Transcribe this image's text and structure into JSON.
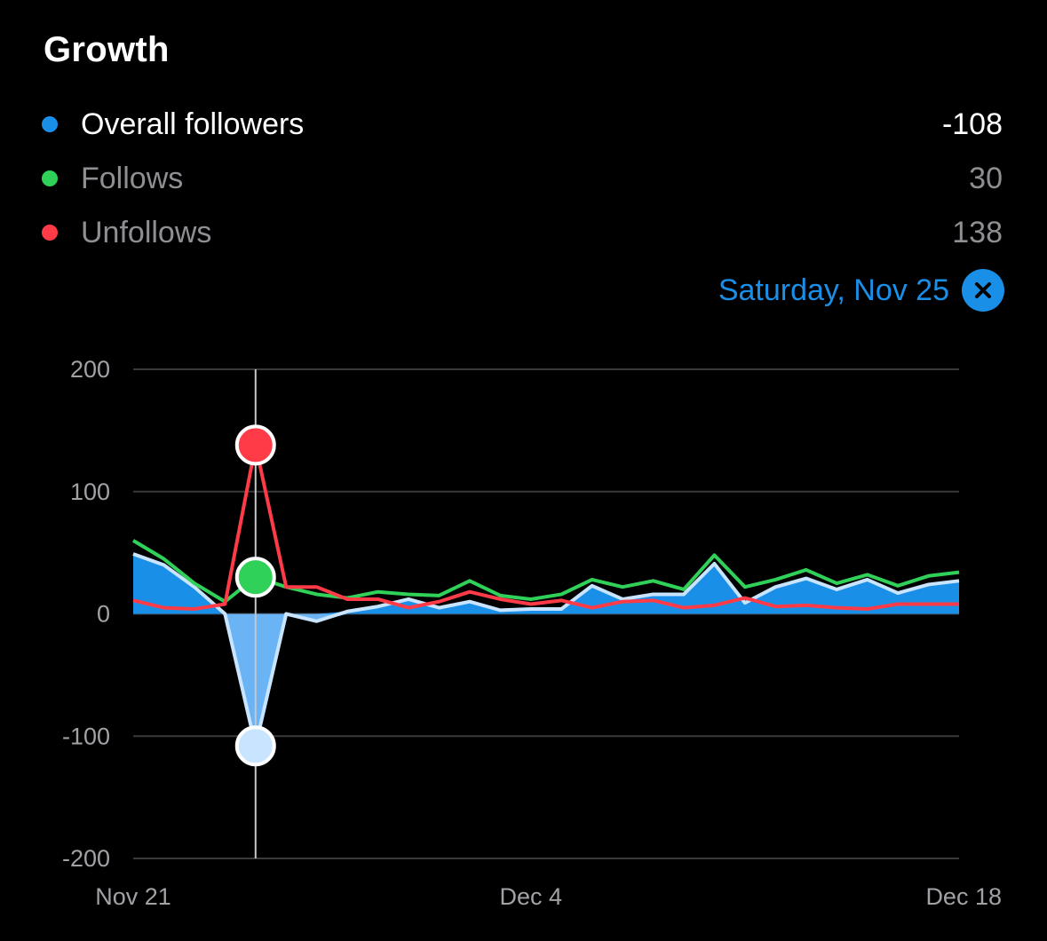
{
  "header": {
    "title": "Growth"
  },
  "legend": [
    {
      "label": "Overall followers",
      "value": "-108",
      "color": "#1a8fe8"
    },
    {
      "label": "Follows",
      "value": "30",
      "color": "#30d158"
    },
    {
      "label": "Unfollows",
      "value": "138",
      "color": "#ff3b48"
    }
  ],
  "selection": {
    "label": "Saturday, Nov 25"
  },
  "chart_data": {
    "type": "area",
    "x_start": "Nov 21",
    "x_end": "Dec 18",
    "ylim": [
      -200,
      200
    ],
    "yticks": [
      200,
      100,
      0,
      -100,
      -200
    ],
    "xticks": [
      {
        "label": "Nov 21",
        "index": 0
      },
      {
        "label": "Dec 4",
        "index": 13
      },
      {
        "label": "Dec 18",
        "index": 27
      }
    ],
    "selected_index": 4,
    "grid": true,
    "series": [
      {
        "name": "Overall followers",
        "type": "area",
        "color": "#1a8fe8",
        "negative_fill": "#6ab4f5",
        "line_color": "#c8e4ff",
        "values": [
          49,
          40,
          22,
          0,
          -108,
          0,
          -6,
          2,
          6,
          12,
          5,
          10,
          3,
          4,
          4,
          23,
          12,
          16,
          16,
          41,
          9,
          22,
          29,
          20,
          28,
          17,
          24,
          27
        ]
      },
      {
        "name": "Follows",
        "type": "line",
        "color": "#30d158",
        "values": [
          60,
          45,
          25,
          10,
          30,
          22,
          16,
          13,
          18,
          16,
          15,
          27,
          15,
          12,
          16,
          28,
          22,
          27,
          20,
          48,
          22,
          28,
          36,
          25,
          32,
          23,
          31,
          34
        ]
      },
      {
        "name": "Unfollows",
        "type": "line",
        "color": "#ff3b48",
        "values": [
          11,
          5,
          4,
          8,
          138,
          22,
          22,
          12,
          12,
          5,
          10,
          18,
          12,
          8,
          11,
          5,
          10,
          11,
          5,
          7,
          13,
          6,
          7,
          5,
          4,
          8,
          8,
          8
        ]
      }
    ]
  }
}
